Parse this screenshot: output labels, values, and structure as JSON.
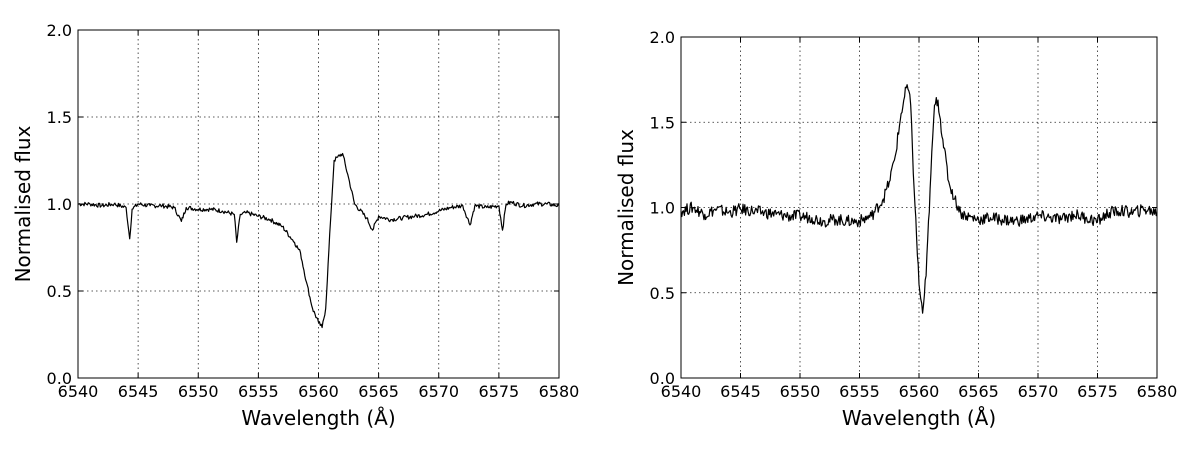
{
  "chart_data": [
    {
      "type": "line",
      "title": "",
      "xlabel": "Wavelength (Å)",
      "ylabel": "Normalised flux",
      "xlim": [
        6540,
        6580
      ],
      "ylim": [
        0.0,
        2.0
      ],
      "xticks": [
        6540,
        6545,
        6550,
        6555,
        6560,
        6565,
        6570,
        6575,
        6580
      ],
      "xtick_labels": [
        "6540",
        "6545",
        "6550",
        "6555",
        "6560",
        "6565",
        "6570",
        "6575",
        "6580"
      ],
      "yticks": [
        0.0,
        0.5,
        1.0,
        1.5,
        2.0
      ],
      "ytick_labels": [
        "0.0",
        "0.5",
        "1.0",
        "1.5",
        "2.0"
      ],
      "grid": true,
      "series": [
        {
          "x": [
            6540,
            6541,
            6542,
            6543,
            6544,
            6544.3,
            6544.5,
            6545,
            6546,
            6547,
            6548,
            6548.6,
            6549,
            6550,
            6551,
            6552,
            6553,
            6553.2,
            6553.5,
            6554,
            6555,
            6556,
            6557,
            6558,
            6558.5,
            6559,
            6559.5,
            6560,
            6560.3,
            6560.6,
            6561,
            6561.3,
            6561.6,
            6562,
            6562.5,
            6563,
            6564,
            6564.5,
            6565,
            6566,
            6567,
            6568,
            6569,
            6570,
            6571,
            6572,
            6572.6,
            6573,
            6574,
            6575,
            6575.3,
            6575.6,
            6576,
            6577,
            6578,
            6579,
            6580
          ],
          "y": [
            1.0,
            1.0,
            0.99,
            1.0,
            0.98,
            0.8,
            0.97,
            1.0,
            0.99,
            0.99,
            0.98,
            0.9,
            0.98,
            0.97,
            0.97,
            0.96,
            0.94,
            0.78,
            0.94,
            0.95,
            0.93,
            0.91,
            0.87,
            0.78,
            0.72,
            0.55,
            0.4,
            0.32,
            0.29,
            0.4,
            0.9,
            1.25,
            1.27,
            1.29,
            1.15,
            1.0,
            0.92,
            0.85,
            0.93,
            0.91,
            0.92,
            0.93,
            0.94,
            0.96,
            0.98,
            0.99,
            0.88,
            0.99,
            0.98,
            0.99,
            0.85,
            1.0,
            1.01,
            0.99,
            1.0,
            1.0,
            0.99
          ]
        }
      ]
    },
    {
      "type": "line",
      "title": "",
      "xlabel": "Wavelength (Å)",
      "ylabel": "Normalised flux",
      "xlim": [
        6540,
        6580
      ],
      "ylim": [
        0.0,
        2.0
      ],
      "xticks": [
        6540,
        6545,
        6550,
        6555,
        6560,
        6565,
        6570,
        6575,
        6580
      ],
      "xtick_labels": [
        "6540",
        "6545",
        "6550",
        "6555",
        "6560",
        "6565",
        "6570",
        "6575",
        "6580"
      ],
      "yticks": [
        0.0,
        0.5,
        1.0,
        1.5,
        2.0
      ],
      "ytick_labels": [
        "0.0",
        "0.5",
        "1.0",
        "1.5",
        "2.0"
      ],
      "grid": true,
      "series": [
        {
          "x": [
            6540,
            6541,
            6542,
            6543,
            6544,
            6545,
            6546,
            6547,
            6548,
            6549,
            6550,
            6551,
            6552,
            6553,
            6554,
            6555,
            6556,
            6557,
            6557.5,
            6558,
            6558.5,
            6559,
            6559.3,
            6559.6,
            6560,
            6560.3,
            6560.6,
            6561,
            6561.3,
            6561.6,
            6562,
            6562.5,
            6563,
            6563.5,
            6564,
            6565,
            6566,
            6567,
            6568,
            6569,
            6570,
            6571,
            6572,
            6573,
            6574,
            6575,
            6576,
            6577,
            6578,
            6579,
            6580
          ],
          "y": [
            0.98,
            1.0,
            0.96,
            0.99,
            0.97,
            0.99,
            0.98,
            0.97,
            0.96,
            0.95,
            0.95,
            0.94,
            0.92,
            0.93,
            0.92,
            0.92,
            0.95,
            1.05,
            1.15,
            1.3,
            1.55,
            1.72,
            1.6,
            1.1,
            0.55,
            0.38,
            0.6,
            1.2,
            1.6,
            1.63,
            1.4,
            1.15,
            1.05,
            0.97,
            0.95,
            0.93,
            0.94,
            0.93,
            0.92,
            0.93,
            0.95,
            0.94,
            0.93,
            0.96,
            0.94,
            0.92,
            0.97,
            0.98,
            0.97,
            0.99,
            0.97
          ]
        }
      ]
    }
  ]
}
